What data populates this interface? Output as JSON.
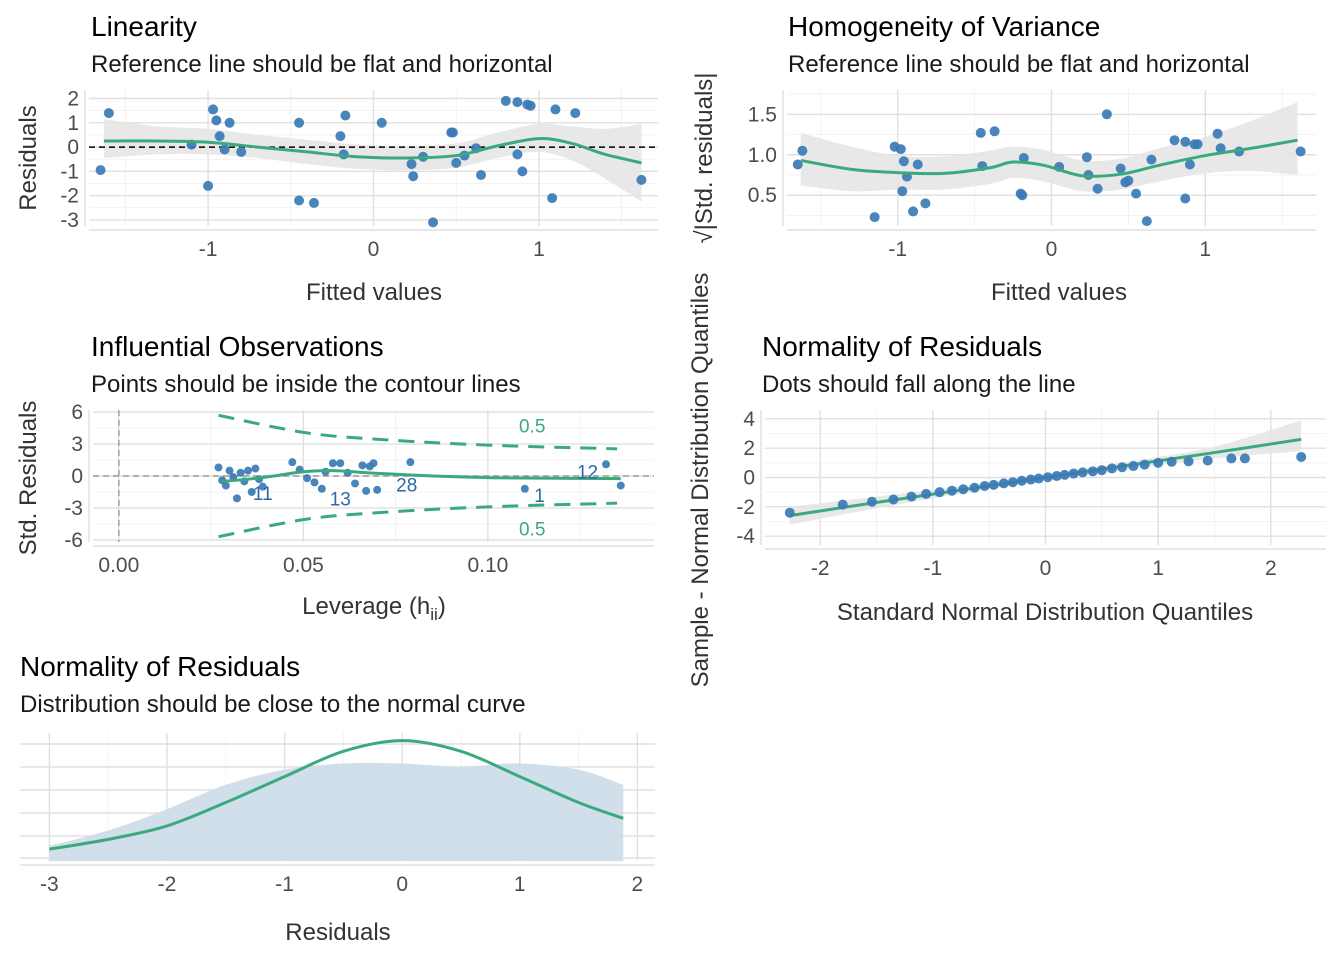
{
  "colors": {
    "point": "#3A7AB5",
    "curve": "#3AAA7E",
    "band": "#e4e4e4",
    "density_fill": "#CFDDEA",
    "label_blue": "#2b6aa6",
    "label_green": "#3AAA7E"
  },
  "chart_data": [
    {
      "type": "scatter",
      "title": "Linearity",
      "subtitle": "Reference line should be flat and horizontal",
      "xlabel": "Fitted values",
      "ylabel": "Residuals",
      "xlim": [
        -1.72,
        1.72
      ],
      "ylim": [
        -3.25,
        2.35
      ],
      "x_ticks": [
        -1,
        0,
        1
      ],
      "x_tick_labels": [
        "-1",
        "0",
        "1"
      ],
      "y_ticks": [
        -3,
        -2,
        -1,
        0,
        1,
        2
      ],
      "y_tick_labels": [
        "-3",
        "-2",
        "-1",
        "0",
        "1",
        "2"
      ],
      "reference_line_y": 0,
      "points": [
        {
          "x": -1.65,
          "y": -0.95
        },
        {
          "x": -1.6,
          "y": 1.4
        },
        {
          "x": -1.1,
          "y": 0.1
        },
        {
          "x": -1.0,
          "y": -1.6
        },
        {
          "x": -0.97,
          "y": 1.55
        },
        {
          "x": -0.95,
          "y": 1.1
        },
        {
          "x": -0.93,
          "y": 0.45
        },
        {
          "x": -0.9,
          "y": -0.1
        },
        {
          "x": -0.87,
          "y": 1.0
        },
        {
          "x": -0.8,
          "y": -0.2
        },
        {
          "x": -0.45,
          "y": 1.0
        },
        {
          "x": -0.45,
          "y": -2.2
        },
        {
          "x": -0.36,
          "y": -2.3
        },
        {
          "x": -0.2,
          "y": 0.45
        },
        {
          "x": -0.18,
          "y": -0.3
        },
        {
          "x": -0.17,
          "y": 1.3
        },
        {
          "x": 0.05,
          "y": 1.0
        },
        {
          "x": 0.23,
          "y": -0.7
        },
        {
          "x": 0.24,
          "y": -1.2
        },
        {
          "x": 0.3,
          "y": -0.4
        },
        {
          "x": 0.36,
          "y": -3.1
        },
        {
          "x": 0.47,
          "y": 0.6
        },
        {
          "x": 0.48,
          "y": 0.6
        },
        {
          "x": 0.5,
          "y": -0.65
        },
        {
          "x": 0.55,
          "y": -0.35
        },
        {
          "x": 0.62,
          "y": -0.05
        },
        {
          "x": 0.65,
          "y": -1.15
        },
        {
          "x": 0.8,
          "y": 1.9
        },
        {
          "x": 0.87,
          "y": 1.85
        },
        {
          "x": 0.87,
          "y": -0.3
        },
        {
          "x": 0.9,
          "y": -1.0
        },
        {
          "x": 0.93,
          "y": 1.75
        },
        {
          "x": 0.95,
          "y": 1.7
        },
        {
          "x": 1.08,
          "y": -2.1
        },
        {
          "x": 1.1,
          "y": 1.55
        },
        {
          "x": 1.22,
          "y": 1.4
        },
        {
          "x": 1.62,
          "y": -1.35
        }
      ],
      "smooth": [
        {
          "x": -1.63,
          "y": 0.25,
          "lo": -0.45,
          "hi": 1.15
        },
        {
          "x": -1.3,
          "y": 0.25,
          "lo": -0.3,
          "hi": 0.85
        },
        {
          "x": -1.0,
          "y": 0.2,
          "lo": -0.3,
          "hi": 0.75
        },
        {
          "x": -0.7,
          "y": 0.0,
          "lo": -0.45,
          "hi": 0.5
        },
        {
          "x": -0.4,
          "y": -0.2,
          "lo": -0.7,
          "hi": 0.3
        },
        {
          "x": -0.1,
          "y": -0.4,
          "lo": -0.9,
          "hi": 0.1
        },
        {
          "x": 0.2,
          "y": -0.45,
          "lo": -0.95,
          "hi": 0.05
        },
        {
          "x": 0.5,
          "y": -0.35,
          "lo": -0.85,
          "hi": 0.15
        },
        {
          "x": 0.75,
          "y": 0.05,
          "lo": -0.45,
          "hi": 0.6
        },
        {
          "x": 1.0,
          "y": 0.35,
          "lo": -0.2,
          "hi": 0.95
        },
        {
          "x": 1.2,
          "y": 0.15,
          "lo": -0.55,
          "hi": 0.85
        },
        {
          "x": 1.4,
          "y": -0.3,
          "lo": -1.3,
          "hi": 0.75
        },
        {
          "x": 1.62,
          "y": -0.65,
          "lo": -2.25,
          "hi": 0.95
        }
      ]
    },
    {
      "type": "scatter",
      "title": "Homogeneity of Variance",
      "subtitle": "Reference line should be flat and horizontal",
      "xlabel": "Fitted values",
      "ylabel": "√|Std. residuals|",
      "xlim": [
        -1.72,
        1.72
      ],
      "ylim": [
        0.12,
        1.8
      ],
      "x_ticks": [
        -1,
        0,
        1
      ],
      "x_tick_labels": [
        "-1",
        "0",
        "1"
      ],
      "y_ticks": [
        0.5,
        1.0,
        1.5
      ],
      "y_tick_labels": [
        "0.5",
        "1.0",
        "1.5"
      ],
      "points": [
        {
          "x": -1.65,
          "y": 0.88
        },
        {
          "x": -1.62,
          "y": 1.05
        },
        {
          "x": -1.15,
          "y": 0.23
        },
        {
          "x": -1.02,
          "y": 1.1
        },
        {
          "x": -0.98,
          "y": 1.07
        },
        {
          "x": -0.97,
          "y": 0.55
        },
        {
          "x": -0.96,
          "y": 0.92
        },
        {
          "x": -0.94,
          "y": 0.73
        },
        {
          "x": -0.9,
          "y": 0.3
        },
        {
          "x": -0.87,
          "y": 0.88
        },
        {
          "x": -0.82,
          "y": 0.4
        },
        {
          "x": -0.45,
          "y": 0.86
        },
        {
          "x": -0.46,
          "y": 1.27
        },
        {
          "x": -0.37,
          "y": 1.29
        },
        {
          "x": -0.2,
          "y": 0.52
        },
        {
          "x": -0.19,
          "y": 0.5
        },
        {
          "x": -0.18,
          "y": 0.96
        },
        {
          "x": 0.05,
          "y": 0.85
        },
        {
          "x": 0.23,
          "y": 0.97
        },
        {
          "x": 0.24,
          "y": 0.75
        },
        {
          "x": 0.3,
          "y": 0.58
        },
        {
          "x": 0.36,
          "y": 1.5
        },
        {
          "x": 0.45,
          "y": 0.83
        },
        {
          "x": 0.48,
          "y": 0.66
        },
        {
          "x": 0.5,
          "y": 0.68
        },
        {
          "x": 0.55,
          "y": 0.52
        },
        {
          "x": 0.62,
          "y": 0.18
        },
        {
          "x": 0.65,
          "y": 0.94
        },
        {
          "x": 0.8,
          "y": 1.18
        },
        {
          "x": 0.87,
          "y": 0.46
        },
        {
          "x": 0.9,
          "y": 0.88
        },
        {
          "x": 0.87,
          "y": 1.16
        },
        {
          "x": 0.93,
          "y": 1.13
        },
        {
          "x": 0.95,
          "y": 1.13
        },
        {
          "x": 1.08,
          "y": 1.26
        },
        {
          "x": 1.1,
          "y": 1.08
        },
        {
          "x": 1.22,
          "y": 1.04
        },
        {
          "x": 1.62,
          "y": 1.04
        }
      ],
      "smooth": [
        {
          "x": -1.63,
          "y": 0.93,
          "lo": 0.62,
          "hi": 1.27
        },
        {
          "x": -1.3,
          "y": 0.82,
          "lo": 0.55,
          "hi": 1.1
        },
        {
          "x": -1.0,
          "y": 0.78,
          "lo": 0.57,
          "hi": 0.99
        },
        {
          "x": -0.7,
          "y": 0.77,
          "lo": 0.57,
          "hi": 0.98
        },
        {
          "x": -0.4,
          "y": 0.84,
          "lo": 0.64,
          "hi": 1.05
        },
        {
          "x": -0.25,
          "y": 0.91,
          "lo": 0.71,
          "hi": 1.1
        },
        {
          "x": -0.05,
          "y": 0.87,
          "lo": 0.67,
          "hi": 1.06
        },
        {
          "x": 0.2,
          "y": 0.74,
          "lo": 0.55,
          "hi": 0.93
        },
        {
          "x": 0.45,
          "y": 0.76,
          "lo": 0.57,
          "hi": 0.95
        },
        {
          "x": 0.7,
          "y": 0.87,
          "lo": 0.67,
          "hi": 1.08
        },
        {
          "x": 1.0,
          "y": 0.99,
          "lo": 0.77,
          "hi": 1.22
        },
        {
          "x": 1.3,
          "y": 1.08,
          "lo": 0.8,
          "hi": 1.42
        },
        {
          "x": 1.6,
          "y": 1.18,
          "lo": 0.75,
          "hi": 1.65
        }
      ]
    },
    {
      "type": "scatter",
      "title": "Influential Observations",
      "subtitle": "Points should be inside the contour lines",
      "xlabel": "Leverage (h",
      "xlabel_sub": "ii",
      "xlabel_end": ")",
      "ylabel": "Std. Residuals",
      "xlim": [
        -0.007,
        0.145
      ],
      "ylim": [
        -6.2,
        6.2
      ],
      "x_ticks": [
        0.0,
        0.05,
        0.1
      ],
      "x_tick_labels": [
        "0.00",
        "0.05",
        "0.10"
      ],
      "y_ticks": [
        -6,
        -3,
        0,
        3,
        6
      ],
      "y_tick_labels": [
        "-6",
        "-3",
        "0",
        "3",
        "6"
      ],
      "contour_upper": [
        {
          "x": 0.027,
          "y": 5.7
        },
        {
          "x": 0.05,
          "y": 4.1
        },
        {
          "x": 0.07,
          "y": 3.45
        },
        {
          "x": 0.1,
          "y": 2.9
        },
        {
          "x": 0.135,
          "y": 2.55
        }
      ],
      "contour_lower": [
        {
          "x": 0.027,
          "y": -5.7
        },
        {
          "x": 0.05,
          "y": -4.1
        },
        {
          "x": 0.07,
          "y": -3.45
        },
        {
          "x": 0.1,
          "y": -2.9
        },
        {
          "x": 0.135,
          "y": -2.55
        }
      ],
      "contour_label": "0.5",
      "points": [
        {
          "x": 0.027,
          "y": 0.8
        },
        {
          "x": 0.028,
          "y": -0.4
        },
        {
          "x": 0.029,
          "y": -0.9
        },
        {
          "x": 0.03,
          "y": 0.5
        },
        {
          "x": 0.031,
          "y": -0.1
        },
        {
          "x": 0.032,
          "y": -2.1
        },
        {
          "x": 0.033,
          "y": 0.3
        },
        {
          "x": 0.034,
          "y": -0.5
        },
        {
          "x": 0.035,
          "y": 0.5
        },
        {
          "x": 0.036,
          "y": -1.5
        },
        {
          "x": 0.037,
          "y": 0.7
        },
        {
          "x": 0.038,
          "y": -0.3
        },
        {
          "x": 0.039,
          "y": -1.0
        },
        {
          "x": 0.047,
          "y": 1.3
        },
        {
          "x": 0.049,
          "y": 0.6
        },
        {
          "x": 0.051,
          "y": -0.2
        },
        {
          "x": 0.053,
          "y": -0.6
        },
        {
          "x": 0.055,
          "y": -1.2
        },
        {
          "x": 0.056,
          "y": 0.4
        },
        {
          "x": 0.058,
          "y": 1.2
        },
        {
          "x": 0.06,
          "y": 1.2
        },
        {
          "x": 0.062,
          "y": 0.3
        },
        {
          "x": 0.064,
          "y": -0.7
        },
        {
          "x": 0.066,
          "y": 1.0
        },
        {
          "x": 0.067,
          "y": -1.4
        },
        {
          "x": 0.068,
          "y": 0.9
        },
        {
          "x": 0.069,
          "y": 1.2
        },
        {
          "x": 0.07,
          "y": -1.3
        },
        {
          "x": 0.079,
          "y": 1.3
        },
        {
          "x": 0.11,
          "y": -1.2
        },
        {
          "x": 0.132,
          "y": 1.1
        },
        {
          "x": 0.136,
          "y": -0.9
        }
      ],
      "smooth": [
        {
          "x": 0.028,
          "y": -0.5
        },
        {
          "x": 0.035,
          "y": -0.3
        },
        {
          "x": 0.042,
          "y": 0.0
        },
        {
          "x": 0.05,
          "y": 0.4
        },
        {
          "x": 0.058,
          "y": 0.5
        },
        {
          "x": 0.07,
          "y": 0.25
        },
        {
          "x": 0.085,
          "y": 0.0
        },
        {
          "x": 0.1,
          "y": -0.15
        },
        {
          "x": 0.115,
          "y": -0.2
        },
        {
          "x": 0.136,
          "y": -0.25
        }
      ],
      "labels": [
        {
          "text": "11",
          "x": 0.039,
          "y": -1.6
        },
        {
          "text": "13",
          "x": 0.06,
          "y": -2.1
        },
        {
          "text": "28",
          "x": 0.078,
          "y": -0.8
        },
        {
          "text": "1",
          "x": 0.114,
          "y": -1.8
        },
        {
          "text": "12",
          "x": 0.127,
          "y": 0.4
        }
      ]
    },
    {
      "type": "scatter",
      "title": "Normality of Residuals",
      "subtitle": "Dots should fall along the line",
      "xlabel": "Standard Normal Distribution Quantiles",
      "ylabel": "Sample - Normal Distribution Quantiles",
      "xlim": [
        -2.49,
        2.49
      ],
      "ylim": [
        -4.6,
        4.6
      ],
      "x_ticks": [
        -2,
        -1,
        0,
        1,
        2
      ],
      "x_tick_labels": [
        "-2",
        "-1",
        "0",
        "1",
        "2"
      ],
      "y_ticks": [
        -4,
        -2,
        0,
        2,
        4
      ],
      "y_tick_labels": [
        "-4",
        "-2",
        "0",
        "2",
        "4"
      ],
      "points": [
        {
          "x": -2.27,
          "y": -2.4
        },
        {
          "x": -1.8,
          "y": -1.85
        },
        {
          "x": -1.54,
          "y": -1.65
        },
        {
          "x": -1.35,
          "y": -1.5
        },
        {
          "x": -1.19,
          "y": -1.3
        },
        {
          "x": -1.06,
          "y": -1.12
        },
        {
          "x": -0.94,
          "y": -1.0
        },
        {
          "x": -0.83,
          "y": -0.9
        },
        {
          "x": -0.73,
          "y": -0.8
        },
        {
          "x": -0.63,
          "y": -0.7
        },
        {
          "x": -0.54,
          "y": -0.58
        },
        {
          "x": -0.46,
          "y": -0.5
        },
        {
          "x": -0.37,
          "y": -0.4
        },
        {
          "x": -0.29,
          "y": -0.32
        },
        {
          "x": -0.21,
          "y": -0.22
        },
        {
          "x": -0.13,
          "y": -0.14
        },
        {
          "x": -0.06,
          "y": -0.07
        },
        {
          "x": 0.02,
          "y": 0.02
        },
        {
          "x": 0.1,
          "y": 0.1
        },
        {
          "x": 0.17,
          "y": 0.18
        },
        {
          "x": 0.25,
          "y": 0.27
        },
        {
          "x": 0.33,
          "y": 0.35
        },
        {
          "x": 0.42,
          "y": 0.42
        },
        {
          "x": 0.5,
          "y": 0.5
        },
        {
          "x": 0.59,
          "y": 0.62
        },
        {
          "x": 0.68,
          "y": 0.7
        },
        {
          "x": 0.78,
          "y": 0.78
        },
        {
          "x": 0.88,
          "y": 0.88
        },
        {
          "x": 1.0,
          "y": 1.0
        },
        {
          "x": 1.12,
          "y": 1.07
        },
        {
          "x": 1.27,
          "y": 1.1
        },
        {
          "x": 1.44,
          "y": 1.15
        },
        {
          "x": 1.65,
          "y": 1.3
        },
        {
          "x": 1.77,
          "y": 1.3
        },
        {
          "x": 2.27,
          "y": 1.4
        }
      ],
      "smooth": [
        {
          "x": -2.27,
          "y": -2.6,
          "lo": -3.2,
          "hi": -2.0
        },
        {
          "x": -1.5,
          "y": -1.7,
          "lo": -2.1,
          "hi": -1.3
        },
        {
          "x": -0.75,
          "y": -0.85,
          "lo": -1.1,
          "hi": -0.6
        },
        {
          "x": 0.0,
          "y": 0.0,
          "lo": -0.2,
          "hi": 0.2
        },
        {
          "x": 0.75,
          "y": 0.85,
          "lo": 0.6,
          "hi": 1.1
        },
        {
          "x": 1.5,
          "y": 1.7,
          "lo": 1.3,
          "hi": 2.1
        },
        {
          "x": 2.27,
          "y": 2.6,
          "lo": 1.8,
          "hi": 3.9
        }
      ]
    },
    {
      "type": "area",
      "title": "Normality of Residuals",
      "subtitle": "Distribution should be close to the normal curve",
      "xlabel": "Residuals",
      "xlim": [
        -3.25,
        2.15
      ],
      "ylim": [
        0,
        0.42
      ],
      "x_ticks": [
        -3,
        -2,
        -1,
        0,
        1,
        2
      ],
      "x_tick_labels": [
        "-3",
        "-2",
        "-1",
        "0",
        "1",
        "2"
      ],
      "density": [
        {
          "x": -3.0,
          "y": 0.05
        },
        {
          "x": -2.5,
          "y": 0.1
        },
        {
          "x": -2.0,
          "y": 0.17
        },
        {
          "x": -1.5,
          "y": 0.25
        },
        {
          "x": -1.0,
          "y": 0.3
        },
        {
          "x": -0.5,
          "y": 0.32
        },
        {
          "x": 0.0,
          "y": 0.32
        },
        {
          "x": 0.5,
          "y": 0.31
        },
        {
          "x": 1.0,
          "y": 0.32
        },
        {
          "x": 1.5,
          "y": 0.3
        },
        {
          "x": 1.88,
          "y": 0.25
        }
      ],
      "normal_curve": [
        {
          "x": -3.0,
          "y": 0.039
        },
        {
          "x": -2.5,
          "y": 0.071
        },
        {
          "x": -2.0,
          "y": 0.115
        },
        {
          "x": -1.5,
          "y": 0.192
        },
        {
          "x": -1.0,
          "y": 0.277
        },
        {
          "x": -0.5,
          "y": 0.36
        },
        {
          "x": 0.0,
          "y": 0.395
        },
        {
          "x": 0.5,
          "y": 0.36
        },
        {
          "x": 1.0,
          "y": 0.277
        },
        {
          "x": 1.5,
          "y": 0.192
        },
        {
          "x": 1.88,
          "y": 0.14
        }
      ]
    }
  ]
}
